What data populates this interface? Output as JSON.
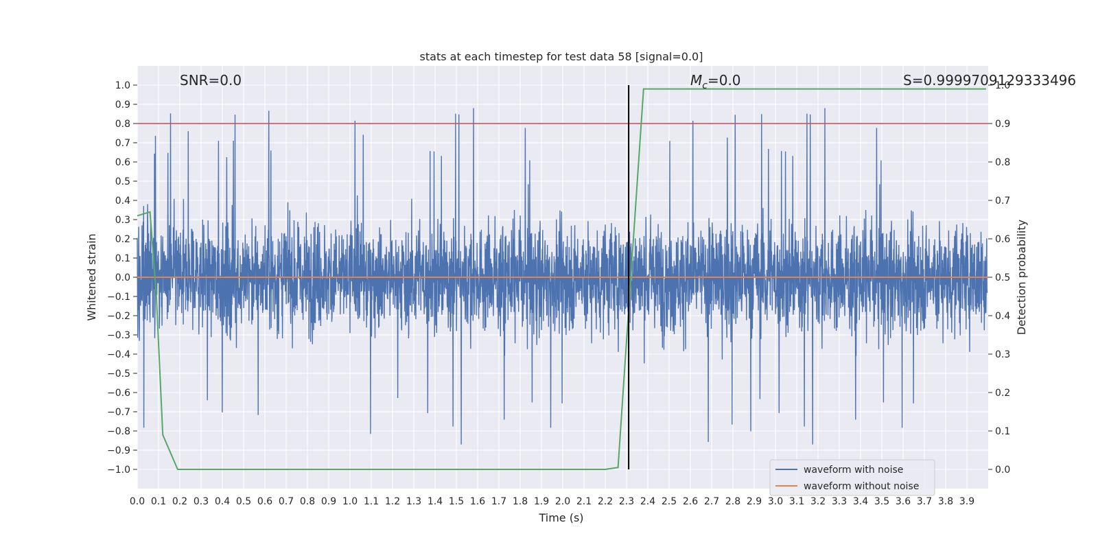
{
  "chart_data": {
    "type": "line",
    "title": "stats at each timestep for test data 58 [signal=0.0]",
    "xlabel": "Time (s)",
    "ylabel": "Whitened strain",
    "y2label": "Detection probability",
    "xlim": [
      0.0,
      4.0
    ],
    "ylim": [
      -1.1,
      1.1
    ],
    "y2lim": [
      -0.05,
      1.05
    ],
    "xticks": [
      "0.0",
      "0.1",
      "0.2",
      "0.3",
      "0.4",
      "0.5",
      "0.6",
      "0.7",
      "0.8",
      "0.9",
      "1.0",
      "1.1",
      "1.2",
      "1.3",
      "1.4",
      "1.5",
      "1.6",
      "1.7",
      "1.8",
      "1.9",
      "2.0",
      "2.1",
      "2.2",
      "2.3",
      "2.4",
      "2.5",
      "2.6",
      "2.7",
      "2.8",
      "2.9",
      "3.0",
      "3.1",
      "3.2",
      "3.3",
      "3.4",
      "3.5",
      "3.6",
      "3.7",
      "3.8",
      "3.9"
    ],
    "yticks": [
      "1.0",
      "0.9",
      "0.8",
      "0.7",
      "0.6",
      "0.5",
      "0.4",
      "0.3",
      "0.2",
      "0.1",
      "0.0",
      "−0.1",
      "−0.2",
      "−0.3",
      "−0.4",
      "−0.5",
      "−0.6",
      "−0.7",
      "−0.8",
      "−0.9",
      "−1.0"
    ],
    "y2ticks": [
      "1.0",
      "0.9",
      "0.8",
      "0.7",
      "0.6",
      "0.5",
      "0.4",
      "0.3",
      "0.2",
      "0.1",
      "0.0"
    ],
    "annotations": {
      "snr": "SNR=0.0",
      "mc": "M",
      "mc_sub": "c",
      "mc_value": "=0.0",
      "s": "S=0.9999709129333496"
    },
    "legend": {
      "placement": "lower-right",
      "entries": [
        "waveform with noise",
        "waveform without noise"
      ]
    },
    "series": [
      {
        "name": "waveform with noise",
        "color": "#4c72b0",
        "description": "noise-dominated strain, roughly between -1.0 and 0.9, sampled densely"
      },
      {
        "name": "waveform without noise",
        "color": "#dd8452",
        "y_constant": 0.0
      },
      {
        "name": "detection probability",
        "color": "#55a868",
        "axis": "right",
        "x": [
          0.0,
          0.06,
          0.09,
          0.12,
          0.19,
          2.2,
          2.26,
          2.32,
          2.38,
          3.99
        ],
        "y": [
          0.66,
          0.67,
          0.45,
          0.09,
          0.0,
          0.0,
          0.005,
          0.5,
          0.99,
          0.99
        ]
      }
    ],
    "threshold": {
      "axis": "right",
      "value": 0.9,
      "color": "#c44e52"
    },
    "vline": {
      "x": 2.31,
      "color": "#000000"
    }
  }
}
